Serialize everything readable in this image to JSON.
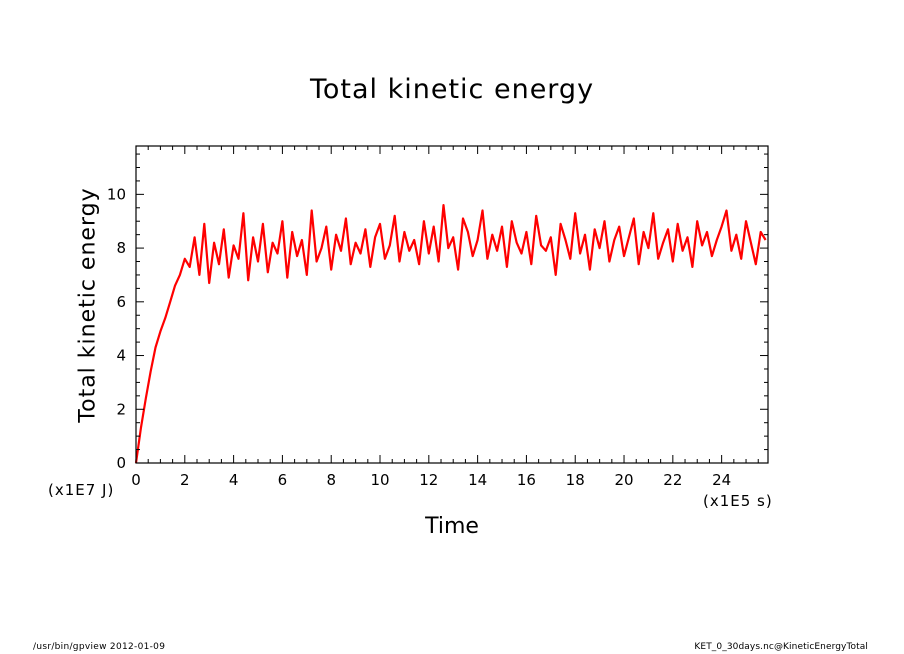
{
  "chart_data": {
    "type": "line",
    "title": "Total kinetic energy",
    "xlabel": "Time",
    "ylabel": "Total kinetic energy",
    "x_unit": "(x1E5 s)",
    "y_unit": "(x1E7 J)",
    "xlim": [
      0,
      25.9
    ],
    "ylim": [
      0,
      11.8
    ],
    "x_ticks": [
      "0",
      "2",
      "4",
      "6",
      "8",
      "10",
      "12",
      "14",
      "16",
      "18",
      "20",
      "22",
      "24"
    ],
    "y_ticks": [
      "0",
      "2",
      "4",
      "6",
      "8",
      "10"
    ],
    "grid": false,
    "series": [
      {
        "color": "#ff0000",
        "x": [
          0,
          0.2,
          0.4,
          0.6,
          0.8,
          1.0,
          1.2,
          1.4,
          1.6,
          1.8,
          2.0,
          2.2,
          2.4,
          2.6,
          2.8,
          3.0,
          3.2,
          3.4,
          3.6,
          3.8,
          4.0,
          4.2,
          4.4,
          4.6,
          4.8,
          5.0,
          5.2,
          5.4,
          5.6,
          5.8,
          6.0,
          6.2,
          6.4,
          6.6,
          6.8,
          7.0,
          7.2,
          7.4,
          7.6,
          7.8,
          8.0,
          8.2,
          8.4,
          8.6,
          8.8,
          9.0,
          9.2,
          9.4,
          9.6,
          9.8,
          10.0,
          10.2,
          10.4,
          10.6,
          10.8,
          11.0,
          11.2,
          11.4,
          11.6,
          11.8,
          12.0,
          12.2,
          12.4,
          12.6,
          12.8,
          13.0,
          13.2,
          13.4,
          13.6,
          13.8,
          14.0,
          14.2,
          14.4,
          14.6,
          14.8,
          15.0,
          15.2,
          15.4,
          15.6,
          15.8,
          16.0,
          16.2,
          16.4,
          16.6,
          16.8,
          17.0,
          17.2,
          17.4,
          17.6,
          17.8,
          18.0,
          18.2,
          18.4,
          18.6,
          18.8,
          19.0,
          19.2,
          19.4,
          19.6,
          19.8,
          20.0,
          20.2,
          20.4,
          20.6,
          20.8,
          21.0,
          21.2,
          21.4,
          21.6,
          21.8,
          22.0,
          22.2,
          22.4,
          22.6,
          22.8,
          23.0,
          23.2,
          23.4,
          23.6,
          23.8,
          24.0,
          24.2,
          24.4,
          24.6,
          24.8,
          25.0,
          25.2,
          25.4,
          25.6,
          25.8
        ],
        "y": [
          0.0,
          1.3,
          2.4,
          3.4,
          4.3,
          4.9,
          5.4,
          6.0,
          6.6,
          7.0,
          7.6,
          7.3,
          8.4,
          7.0,
          8.9,
          6.7,
          8.2,
          7.4,
          8.7,
          6.9,
          8.1,
          7.6,
          9.3,
          6.8,
          8.4,
          7.5,
          8.9,
          7.1,
          8.2,
          7.8,
          9.0,
          6.9,
          8.6,
          7.7,
          8.3,
          7.0,
          9.4,
          7.5,
          8.0,
          8.8,
          7.2,
          8.5,
          7.9,
          9.1,
          7.4,
          8.2,
          7.8,
          8.7,
          7.3,
          8.4,
          8.9,
          7.6,
          8.1,
          9.2,
          7.5,
          8.6,
          7.9,
          8.3,
          7.4,
          9.0,
          7.8,
          8.8,
          7.5,
          9.6,
          8.0,
          8.4,
          7.2,
          9.1,
          8.6,
          7.7,
          8.3,
          9.4,
          7.6,
          8.5,
          7.9,
          8.8,
          7.3,
          9.0,
          8.2,
          7.8,
          8.6,
          7.4,
          9.2,
          8.1,
          7.9,
          8.4,
          7.0,
          8.9,
          8.3,
          7.6,
          9.3,
          7.8,
          8.5,
          7.2,
          8.7,
          8.0,
          9.0,
          7.5,
          8.3,
          8.8,
          7.7,
          8.4,
          9.1,
          7.4,
          8.6,
          8.0,
          9.3,
          7.6,
          8.2,
          8.7,
          7.5,
          8.9,
          7.9,
          8.4,
          7.3,
          9.0,
          8.1,
          8.6,
          7.7,
          8.3,
          8.8,
          9.4,
          7.9,
          8.5,
          7.6,
          9.0,
          8.2,
          7.4,
          8.6,
          8.3
        ]
      }
    ]
  },
  "footer": {
    "left": "/usr/bin/gpview  2012-01-09",
    "right": "KET_0_30days.nc@KineticEnergyTotal"
  }
}
